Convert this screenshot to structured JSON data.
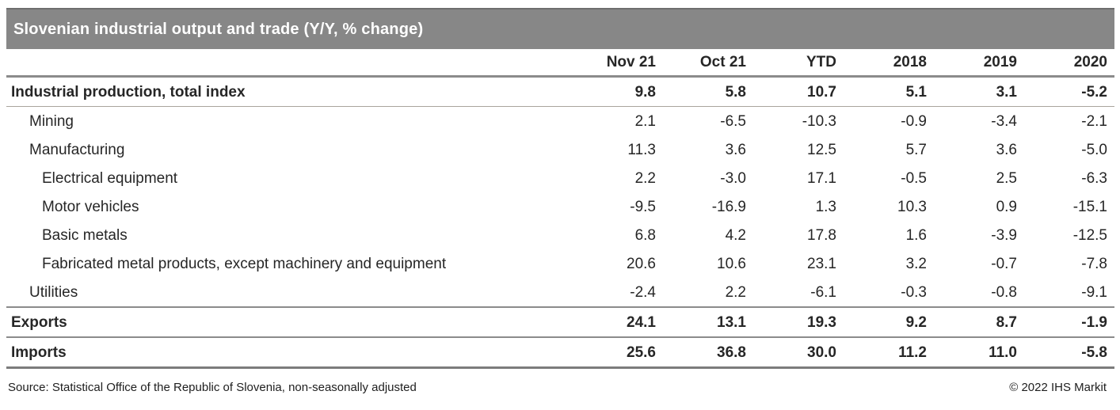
{
  "chart_data": {
    "type": "table",
    "title": "Slovenian industrial output and trade (Y/Y, % change)",
    "columns": [
      "Nov 21",
      "Oct 21",
      "YTD",
      "2018",
      "2019",
      "2020"
    ],
    "value_decimals": 1,
    "rows": [
      {
        "label": "Industrial production, total index",
        "indent": 0,
        "bold": true,
        "rule_below": "thin",
        "values": [
          9.8,
          5.8,
          10.7,
          5.1,
          3.1,
          -5.2
        ]
      },
      {
        "label": "Mining",
        "indent": 1,
        "bold": false,
        "rule_below": "none",
        "values": [
          2.1,
          -6.5,
          -10.3,
          -0.9,
          -3.4,
          -2.1
        ]
      },
      {
        "label": "Manufacturing",
        "indent": 1,
        "bold": false,
        "rule_below": "none",
        "values": [
          11.3,
          3.6,
          12.5,
          5.7,
          3.6,
          -5.0
        ]
      },
      {
        "label": "Electrical equipment",
        "indent": 2,
        "bold": false,
        "rule_below": "none",
        "values": [
          2.2,
          -3.0,
          17.1,
          -0.5,
          2.5,
          -6.3
        ]
      },
      {
        "label": "Motor vehicles",
        "indent": 2,
        "bold": false,
        "rule_below": "none",
        "values": [
          -9.5,
          -16.9,
          1.3,
          10.3,
          0.9,
          -15.1
        ]
      },
      {
        "label": "Basic metals",
        "indent": 2,
        "bold": false,
        "rule_below": "none",
        "values": [
          6.8,
          4.2,
          17.8,
          1.6,
          -3.9,
          -12.5
        ]
      },
      {
        "label": "Fabricated metal products, except machinery and equipment",
        "indent": 2,
        "bold": false,
        "rule_below": "none",
        "values": [
          20.6,
          10.6,
          23.1,
          3.2,
          -0.7,
          -7.8
        ]
      },
      {
        "label": "Utilities",
        "indent": 1,
        "bold": false,
        "rule_below": "heavy",
        "values": [
          -2.4,
          2.2,
          -6.1,
          -0.3,
          -0.8,
          -9.1
        ]
      },
      {
        "label": "Exports",
        "indent": 0,
        "bold": true,
        "rule_below": "heavy",
        "values": [
          24.1,
          13.1,
          19.3,
          9.2,
          8.7,
          -1.9
        ]
      },
      {
        "label": "Imports",
        "indent": 0,
        "bold": true,
        "rule_below": "thick",
        "values": [
          25.6,
          36.8,
          30.0,
          11.2,
          11.0,
          -5.8
        ]
      }
    ]
  },
  "footer": {
    "source": "Source: Statistical Office of the Republic of Slovenia, non-seasonally adjusted",
    "copyright": "© 2022 IHS Markit"
  },
  "colors": {
    "title_bar_bg": "#878787",
    "title_bar_edge": "#6e6e6e",
    "title_text": "#ffffff",
    "body_text": "#262626",
    "rule_heavy": "#8b8b8b",
    "rule_thin": "#a9a49d",
    "rule_thick": "#7c7c7c"
  }
}
